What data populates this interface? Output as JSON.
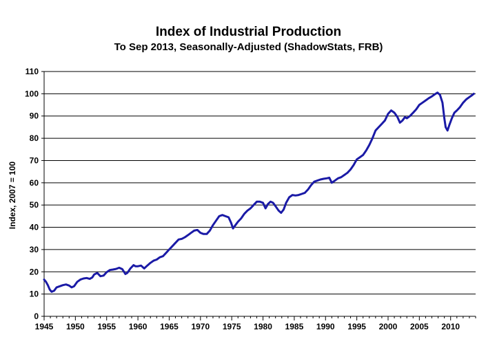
{
  "chart_data": {
    "type": "line",
    "title": "Index of Industrial Production",
    "subtitle": "To Sep 2013, Seasonally-Adjusted (ShadowStats, FRB)",
    "ylabel": "Index, 2007 = 100",
    "xlabel": "",
    "xlim": [
      1945,
      2014
    ],
    "ylim": [
      0,
      110
    ],
    "x_ticks": [
      1945,
      1950,
      1955,
      1960,
      1965,
      1970,
      1975,
      1980,
      1985,
      1990,
      1995,
      2000,
      2005,
      2010
    ],
    "y_ticks": [
      0,
      10,
      20,
      30,
      40,
      50,
      60,
      70,
      80,
      90,
      100,
      110
    ],
    "grid": "horizontal",
    "legend": "none",
    "line_color": "#1a1aa6",
    "series": [
      {
        "x": [
          1945.0,
          1945.3,
          1945.6,
          1945.9,
          1946.2,
          1946.6,
          1947.0,
          1947.5,
          1948.0,
          1948.5,
          1949.0,
          1949.4,
          1949.8,
          1950.3,
          1950.8,
          1951.3,
          1951.8,
          1952.3,
          1952.7,
          1953.0,
          1953.5,
          1954.0,
          1954.5,
          1955.0,
          1955.5,
          1956.0,
          1956.5,
          1957.0,
          1957.5,
          1958.0,
          1958.3,
          1958.8,
          1959.3,
          1959.6,
          1960.0,
          1960.5,
          1961.0,
          1961.5,
          1962.0,
          1962.5,
          1963.0,
          1963.5,
          1964.0,
          1964.5,
          1965.0,
          1965.5,
          1966.0,
          1966.5,
          1967.0,
          1967.5,
          1968.0,
          1968.5,
          1969.0,
          1969.5,
          1970.0,
          1970.5,
          1971.0,
          1971.5,
          1972.0,
          1972.5,
          1973.0,
          1973.5,
          1974.0,
          1974.5,
          1974.9,
          1975.2,
          1975.6,
          1976.0,
          1976.5,
          1977.0,
          1977.5,
          1978.0,
          1978.5,
          1979.0,
          1979.5,
          1980.0,
          1980.4,
          1980.8,
          1981.2,
          1981.6,
          1982.0,
          1982.5,
          1982.9,
          1983.3,
          1983.7,
          1984.2,
          1984.7,
          1985.2,
          1985.7,
          1986.2,
          1986.7,
          1987.2,
          1987.7,
          1988.2,
          1988.7,
          1989.2,
          1989.7,
          1990.2,
          1990.6,
          1991.0,
          1991.5,
          1992.0,
          1992.5,
          1993.0,
          1993.5,
          1994.0,
          1994.5,
          1995.0,
          1995.5,
          1996.0,
          1996.5,
          1997.0,
          1997.5,
          1998.0,
          1998.5,
          1999.0,
          1999.5,
          2000.0,
          2000.5,
          2001.0,
          2001.5,
          2001.9,
          2002.3,
          2002.7,
          2003.0,
          2003.5,
          2004.0,
          2004.5,
          2005.0,
          2005.5,
          2006.0,
          2006.5,
          2007.0,
          2007.5,
          2007.9,
          2008.3,
          2008.7,
          2009.0,
          2009.2,
          2009.5,
          2009.8,
          2010.2,
          2010.6,
          2011.0,
          2011.5,
          2012.0,
          2012.5,
          2013.0,
          2013.4,
          2013.7
        ],
        "y": [
          16.5,
          15.5,
          14.0,
          12.0,
          11.0,
          11.5,
          13.0,
          13.5,
          14.0,
          14.3,
          13.8,
          13.0,
          13.5,
          15.5,
          16.5,
          17.0,
          17.2,
          16.8,
          17.5,
          18.8,
          19.5,
          18.0,
          18.3,
          19.8,
          20.8,
          21.0,
          21.3,
          21.8,
          21.2,
          19.0,
          19.5,
          21.5,
          23.0,
          22.5,
          22.5,
          22.8,
          21.5,
          22.8,
          24.0,
          25.0,
          25.5,
          26.5,
          27.0,
          28.5,
          30.0,
          31.5,
          33.0,
          34.5,
          34.8,
          35.5,
          36.5,
          37.5,
          38.5,
          38.8,
          37.5,
          37.0,
          37.0,
          38.5,
          41.0,
          43.0,
          45.0,
          45.5,
          45.0,
          44.5,
          42.0,
          39.5,
          41.0,
          42.5,
          44.0,
          46.0,
          47.5,
          48.5,
          50.0,
          51.5,
          51.5,
          51.0,
          48.5,
          50.5,
          51.5,
          51.0,
          49.5,
          47.5,
          46.5,
          48.0,
          51.0,
          53.5,
          54.5,
          54.3,
          54.5,
          55.0,
          55.5,
          57.0,
          59.0,
          60.5,
          61.0,
          61.5,
          61.8,
          62.0,
          62.3,
          60.0,
          61.0,
          62.0,
          62.5,
          63.5,
          64.5,
          66.0,
          68.0,
          70.5,
          71.5,
          72.5,
          74.5,
          77.0,
          80.0,
          83.5,
          85.0,
          86.5,
          88.0,
          91.0,
          92.5,
          91.5,
          89.5,
          87.0,
          88.0,
          89.5,
          89.0,
          90.0,
          91.5,
          93.0,
          95.0,
          96.0,
          97.0,
          98.0,
          98.8,
          99.8,
          100.5,
          99.5,
          96.0,
          89.0,
          85.0,
          83.5,
          86.0,
          89.0,
          91.5,
          92.5,
          94.0,
          96.0,
          97.5,
          98.5,
          99.3,
          100.0
        ]
      }
    ]
  }
}
